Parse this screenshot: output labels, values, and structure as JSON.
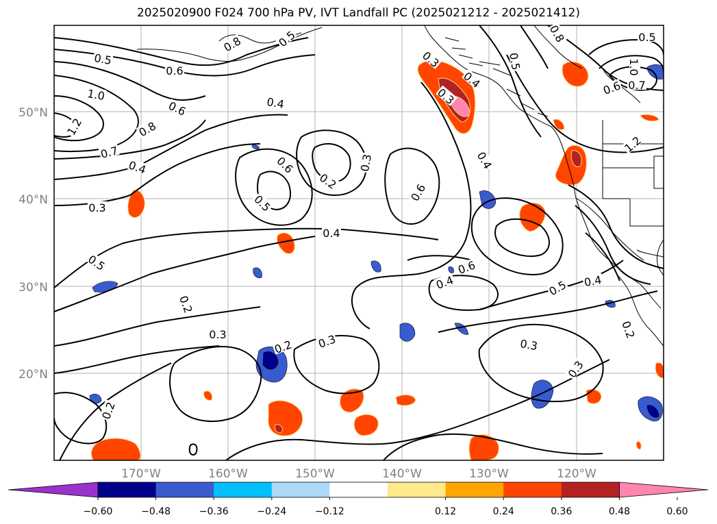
{
  "title": "2025020900 F024 700 hPa PV, IVT Landfall PC (2025021212 - 2025021412)",
  "map": {
    "lat_labels": [
      "50°N",
      "40°N",
      "30°N",
      "20°N"
    ],
    "lon_labels": [
      "170°W",
      "160°W",
      "150°W",
      "140°W",
      "130°W",
      "120°W"
    ],
    "pv_contour_labels": [
      "0.5",
      "0.8",
      "0.6",
      "0.5",
      "1.0",
      "0.6",
      "1.2",
      "0.8",
      "0.7",
      "0.4",
      "0.3",
      "0.5",
      "0.6",
      "0.5",
      "0.2",
      "0.3",
      "0.4",
      "0.6",
      "0.4",
      "0.4",
      "0.6",
      "0.4",
      "0.5",
      "0.4",
      "0.2",
      "0.3",
      "0.2",
      "0.3",
      "0.2",
      "0.3",
      "0.3",
      "0.2",
      "0.3",
      "0.5",
      "0.8",
      "0.5",
      "0.6",
      "0.7",
      "1.0",
      "1.2",
      "0.4",
      "0.3"
    ]
  },
  "colorbar": {
    "ticks": [
      "−0.60",
      "−0.48",
      "−0.36",
      "−0.24",
      "−0.12",
      "0.12",
      "0.24",
      "0.36",
      "0.48",
      "0.60"
    ],
    "colors": {
      "neg_extend": "#9932cc",
      "neg_0.60": "#00008b",
      "neg_0.48": "#3a5bd0",
      "neg_0.36": "#00bfff",
      "neg_0.24": "#add8f8",
      "zero": "#ffffff",
      "pos_0.12": "#ffe98a",
      "pos_0.24": "#ffa500",
      "pos_0.36": "#ff4500",
      "pos_0.48": "#b22222",
      "pos_extend": "#ff85b0"
    }
  }
}
